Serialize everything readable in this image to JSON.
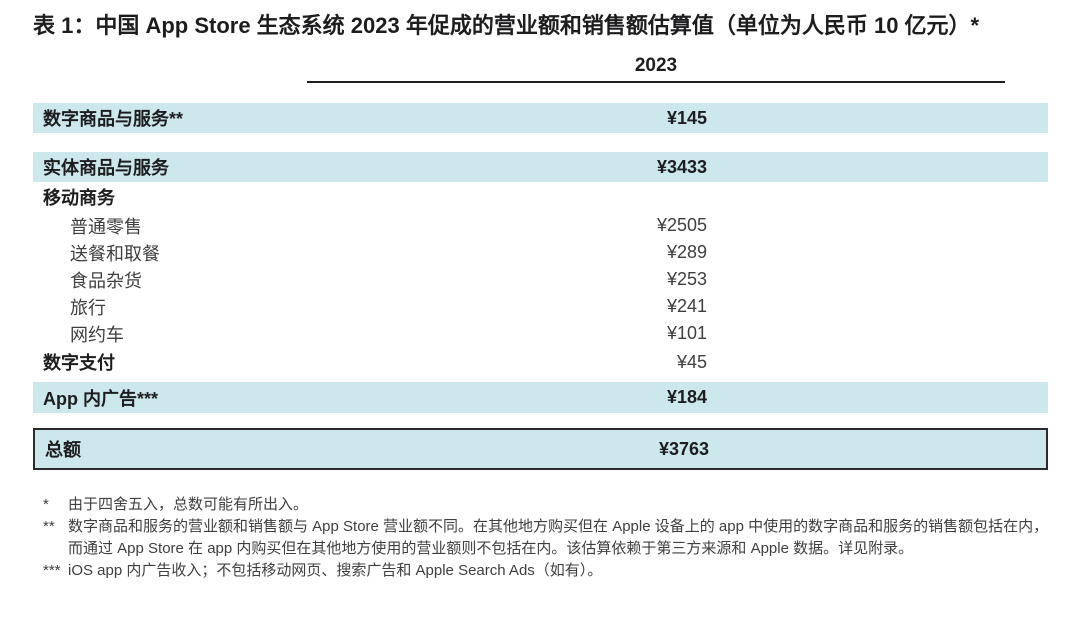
{
  "colors": {
    "highlight": "#cde8ec",
    "rule": "#1f1f1f",
    "text": "#1d1d1f",
    "muted": "#3f3f3f"
  },
  "title": "表 1：中国 App Store 生态系统 2023 年促成的营业额和销售额估算值（单位为人民币 10 亿元）*",
  "table": {
    "year_header": "2023",
    "rows": [
      {
        "label": "数字商品与服务**",
        "value": "¥145"
      },
      {
        "label": "实体商品与服务",
        "value": "¥3433"
      },
      {
        "label": "移动商务",
        "value": ""
      },
      {
        "label": "普通零售",
        "value": "¥2505"
      },
      {
        "label": "送餐和取餐",
        "value": "¥289"
      },
      {
        "label": "食品杂货",
        "value": "¥253"
      },
      {
        "label": "旅行",
        "value": "¥241"
      },
      {
        "label": "网约车",
        "value": "¥101"
      },
      {
        "label": "数字支付",
        "value": "¥45"
      },
      {
        "label": "App 内广告***",
        "value": "¥184"
      }
    ],
    "total": {
      "label": "总额",
      "value": "¥3763"
    }
  },
  "footnotes": [
    {
      "marker": "*",
      "text": "由于四舍五入，总数可能有所出入。"
    },
    {
      "marker": "**",
      "text": "数字商品和服务的营业额和销售额与 App Store 营业额不同。在其他地方购买但在 Apple 设备上的 app 中使用的数字商品和服务的销售额包括在内，而通过 App Store 在 app 内购买但在其他地方使用的营业额则不包括在内。该估算依赖于第三方来源和 Apple 数据。详见附录。"
    },
    {
      "marker": "***",
      "text": "iOS app 内广告收入；不包括移动网页、搜索广告和 Apple Search Ads（如有）。"
    }
  ]
}
